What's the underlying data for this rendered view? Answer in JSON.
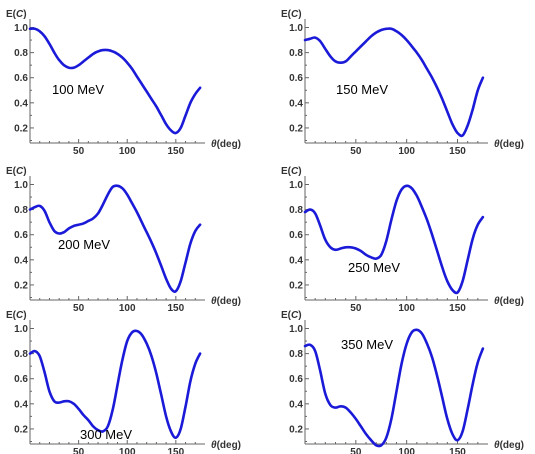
{
  "chart_data": [
    {
      "type": "line",
      "annotation": "100 MeV",
      "ylabel": "E(C)",
      "xlabel": "θ(deg)",
      "xlim": [
        0,
        180
      ],
      "ylim": [
        0.08,
        1.02
      ],
      "xticks": [
        50,
        100,
        150
      ],
      "yticks": [
        0.2,
        0.4,
        0.6,
        0.8,
        1.0
      ],
      "ytick_labels": [
        "0.2",
        "0.4",
        "0.6",
        "0.8",
        "1.0"
      ],
      "series": [
        {
          "x": [
            0,
            5,
            10,
            15,
            20,
            25,
            30,
            35,
            40,
            45,
            50,
            55,
            60,
            65,
            70,
            75,
            80,
            85,
            90,
            95,
            100,
            105,
            110,
            115,
            120,
            125,
            130,
            135,
            140,
            145,
            150,
            155,
            160,
            165,
            170,
            175
          ],
          "y": [
            0.99,
            0.99,
            0.97,
            0.93,
            0.87,
            0.8,
            0.74,
            0.7,
            0.68,
            0.68,
            0.7,
            0.73,
            0.76,
            0.79,
            0.81,
            0.82,
            0.82,
            0.81,
            0.79,
            0.76,
            0.72,
            0.67,
            0.61,
            0.55,
            0.49,
            0.43,
            0.37,
            0.3,
            0.23,
            0.18,
            0.16,
            0.2,
            0.3,
            0.4,
            0.47,
            0.52
          ]
        }
      ]
    },
    {
      "type": "line",
      "annotation": "150 MeV",
      "ylabel": "E(C)",
      "xlabel": "θ(deg)",
      "xlim": [
        0,
        180
      ],
      "ylim": [
        0.08,
        1.02
      ],
      "xticks": [
        50,
        100,
        150
      ],
      "yticks": [
        0.2,
        0.4,
        0.6,
        0.8,
        1.0
      ],
      "ytick_labels": [
        "0.2",
        "0.4",
        "0.6",
        "0.8",
        "1.0"
      ],
      "series": [
        {
          "x": [
            0,
            5,
            10,
            15,
            20,
            25,
            30,
            35,
            40,
            45,
            50,
            55,
            60,
            65,
            70,
            75,
            80,
            85,
            90,
            95,
            100,
            105,
            110,
            115,
            120,
            125,
            130,
            135,
            140,
            145,
            150,
            155,
            160,
            165,
            170,
            175
          ],
          "y": [
            0.9,
            0.91,
            0.92,
            0.89,
            0.83,
            0.77,
            0.73,
            0.72,
            0.73,
            0.77,
            0.81,
            0.85,
            0.89,
            0.93,
            0.96,
            0.98,
            0.99,
            0.99,
            0.97,
            0.94,
            0.9,
            0.85,
            0.8,
            0.74,
            0.67,
            0.6,
            0.52,
            0.43,
            0.33,
            0.23,
            0.16,
            0.14,
            0.22,
            0.35,
            0.5,
            0.6
          ]
        }
      ]
    },
    {
      "type": "line",
      "annotation": "200  MeV",
      "ylabel": "E(C)",
      "xlabel": "θ(deg)",
      "xlim": [
        0,
        180
      ],
      "ylim": [
        0.08,
        1.02
      ],
      "xticks": [
        50,
        100,
        150
      ],
      "yticks": [
        0.2,
        0.4,
        0.6,
        0.8,
        1.0
      ],
      "ytick_labels": [
        "0.2",
        "0.4",
        "0.6",
        "0.8",
        "1.0"
      ],
      "series": [
        {
          "x": [
            0,
            5,
            10,
            15,
            20,
            25,
            30,
            35,
            40,
            45,
            50,
            55,
            60,
            65,
            70,
            75,
            80,
            85,
            90,
            95,
            100,
            105,
            110,
            115,
            120,
            125,
            130,
            135,
            140,
            145,
            150,
            155,
            160,
            165,
            170,
            175
          ],
          "y": [
            0.8,
            0.82,
            0.83,
            0.79,
            0.7,
            0.63,
            0.61,
            0.62,
            0.65,
            0.67,
            0.68,
            0.69,
            0.71,
            0.73,
            0.77,
            0.84,
            0.92,
            0.98,
            0.99,
            0.97,
            0.92,
            0.85,
            0.78,
            0.7,
            0.62,
            0.54,
            0.45,
            0.35,
            0.25,
            0.17,
            0.15,
            0.23,
            0.38,
            0.53,
            0.63,
            0.68
          ]
        }
      ]
    },
    {
      "type": "line",
      "annotation": "250 MeV",
      "ylabel": "E(C)",
      "xlabel": "θ(deg)",
      "xlim": [
        0,
        180
      ],
      "ylim": [
        0.08,
        1.02
      ],
      "xticks": [
        50,
        100,
        150
      ],
      "yticks": [
        0.2,
        0.4,
        0.6,
        0.8,
        1.0
      ],
      "ytick_labels": [
        "0.2",
        "0.4",
        "0.6",
        "0.8",
        "1.0"
      ],
      "series": [
        {
          "x": [
            0,
            5,
            10,
            15,
            20,
            25,
            30,
            35,
            40,
            45,
            50,
            55,
            60,
            65,
            70,
            75,
            80,
            85,
            90,
            95,
            100,
            105,
            110,
            115,
            120,
            125,
            130,
            135,
            140,
            145,
            150,
            155,
            160,
            165,
            170,
            175
          ],
          "y": [
            0.78,
            0.8,
            0.77,
            0.67,
            0.56,
            0.5,
            0.48,
            0.49,
            0.5,
            0.5,
            0.49,
            0.47,
            0.44,
            0.42,
            0.41,
            0.44,
            0.55,
            0.72,
            0.87,
            0.96,
            0.99,
            0.97,
            0.91,
            0.82,
            0.72,
            0.6,
            0.47,
            0.34,
            0.23,
            0.16,
            0.14,
            0.23,
            0.4,
            0.57,
            0.68,
            0.74
          ]
        }
      ]
    },
    {
      "type": "line",
      "annotation": "300  MeV",
      "ylabel": "E(C)",
      "xlabel": "θ(deg)",
      "xlim": [
        0,
        180
      ],
      "ylim": [
        0.08,
        1.02
      ],
      "xticks": [
        50,
        100,
        150
      ],
      "yticks": [
        0.2,
        0.4,
        0.6,
        0.8,
        1.0
      ],
      "ytick_labels": [
        "0.2",
        "0.4",
        "0.6",
        "0.8",
        "1.0"
      ],
      "series": [
        {
          "x": [
            0,
            5,
            10,
            15,
            20,
            25,
            30,
            35,
            40,
            45,
            50,
            55,
            60,
            65,
            70,
            75,
            80,
            85,
            90,
            95,
            100,
            105,
            110,
            115,
            120,
            125,
            130,
            135,
            140,
            145,
            150,
            155,
            160,
            165,
            170,
            175
          ],
          "y": [
            0.8,
            0.82,
            0.78,
            0.65,
            0.5,
            0.42,
            0.41,
            0.42,
            0.42,
            0.4,
            0.36,
            0.31,
            0.27,
            0.22,
            0.19,
            0.18,
            0.22,
            0.35,
            0.55,
            0.75,
            0.9,
            0.97,
            0.98,
            0.95,
            0.88,
            0.78,
            0.64,
            0.47,
            0.3,
            0.18,
            0.13,
            0.2,
            0.38,
            0.58,
            0.72,
            0.8
          ]
        }
      ]
    },
    {
      "type": "line",
      "annotation": "350 MeV",
      "ylabel": "E(C)",
      "xlabel": "θ(deg)",
      "xlim": [
        0,
        180
      ],
      "ylim": [
        0.08,
        1.02
      ],
      "xticks": [
        50,
        100,
        150
      ],
      "yticks": [
        0.2,
        0.4,
        0.6,
        0.8,
        1.0
      ],
      "ytick_labels": [
        "0.2",
        "0.4",
        "0.6",
        "0.8",
        "1.0"
      ],
      "series": [
        {
          "x": [
            0,
            5,
            10,
            15,
            20,
            25,
            30,
            35,
            40,
            45,
            50,
            55,
            60,
            65,
            70,
            75,
            80,
            85,
            90,
            95,
            100,
            105,
            110,
            115,
            120,
            125,
            130,
            135,
            140,
            145,
            150,
            155,
            160,
            165,
            170,
            175
          ],
          "y": [
            0.86,
            0.87,
            0.82,
            0.66,
            0.48,
            0.39,
            0.37,
            0.38,
            0.37,
            0.33,
            0.28,
            0.22,
            0.16,
            0.11,
            0.07,
            0.07,
            0.13,
            0.28,
            0.5,
            0.72,
            0.88,
            0.97,
            0.99,
            0.96,
            0.88,
            0.77,
            0.62,
            0.45,
            0.28,
            0.16,
            0.11,
            0.18,
            0.36,
            0.56,
            0.73,
            0.84
          ]
        }
      ]
    }
  ],
  "style": {
    "curve_color": "#1a1ad8",
    "axis_color": "#666666"
  }
}
